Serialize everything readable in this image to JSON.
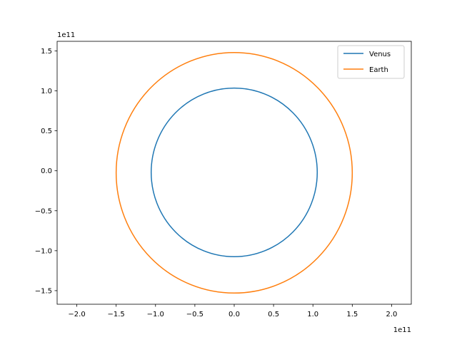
{
  "chart_data": {
    "type": "line",
    "title": "",
    "xlabel": "",
    "ylabel": "",
    "x_offset_label": "1e11",
    "y_offset_label": "1e11",
    "xlim": [
      -2.25,
      2.25
    ],
    "ylim": [
      -1.67,
      1.62
    ],
    "x_ticks": [
      -2.0,
      -1.5,
      -1.0,
      -0.5,
      0.0,
      0.5,
      1.0,
      1.5,
      2.0
    ],
    "x_tick_labels": [
      "−2.0",
      "−1.5",
      "−1.0",
      "−0.5",
      "0.0",
      "0.5",
      "1.0",
      "1.5",
      "2.0"
    ],
    "y_ticks": [
      -1.5,
      -1.0,
      -0.5,
      0.0,
      0.5,
      1.0,
      1.5
    ],
    "y_tick_labels": [
      "−1.5",
      "−1.0",
      "−0.5",
      "0.0",
      "0.5",
      "1.0",
      "1.5"
    ],
    "grid": false,
    "legend_position": "top-right",
    "series": [
      {
        "name": "Venus",
        "color": "#1f77b4",
        "shape": "ellipse",
        "center": [
          0.0,
          -0.02
        ],
        "x_radius": 1.055,
        "y_radius": 1.055
      },
      {
        "name": "Earth",
        "color": "#ff7f0e",
        "shape": "ellipse",
        "center": [
          0.0,
          -0.025
        ],
        "x_radius": 1.5,
        "y_radius": 1.505
      }
    ]
  }
}
